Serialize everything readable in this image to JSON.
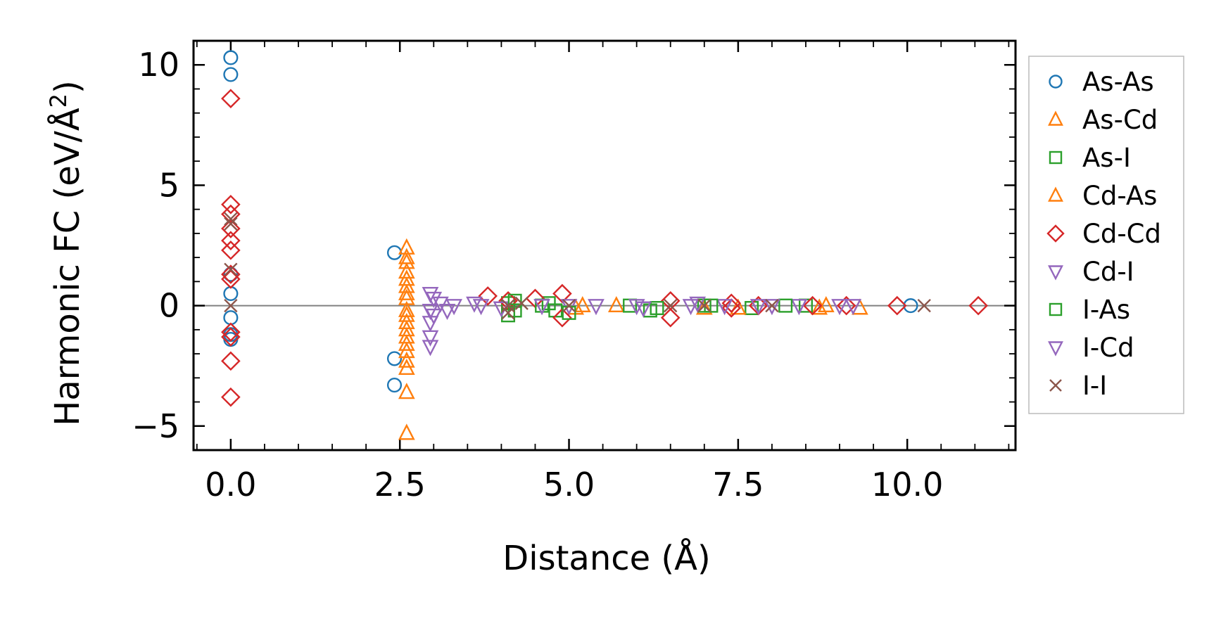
{
  "chart_data": {
    "type": "scatter",
    "xlabel": "Distance (Å)",
    "ylabel_main": "Harmonic FC (eV/Å",
    "ylabel_sup": "2",
    "ylabel_end": ")",
    "xlim": [
      -0.55,
      11.6
    ],
    "ylim": [
      -6.0,
      11.0
    ],
    "xticks": [
      0.0,
      2.5,
      5.0,
      7.5,
      10.0
    ],
    "xtick_labels": [
      "0.0",
      "2.5",
      "5.0",
      "7.5",
      "10.0"
    ],
    "yticks": [
      -5,
      0,
      5,
      10
    ],
    "ytick_labels": [
      "−5",
      "0",
      "5",
      "10"
    ],
    "reference_line": 0,
    "legend_position": "right, outside plot",
    "series": [
      {
        "name": "As-As",
        "marker": "circle",
        "color": "#1f77b4",
        "points": [
          [
            0,
            10.3
          ],
          [
            0,
            9.6
          ],
          [
            0,
            1.3
          ],
          [
            0,
            0.5
          ],
          [
            0,
            -0.5
          ],
          [
            0,
            -1.2
          ],
          [
            0,
            -1.4
          ],
          [
            2.42,
            2.2
          ],
          [
            2.42,
            -2.2
          ],
          [
            2.42,
            -3.3
          ],
          [
            10.05,
            0.0
          ]
        ]
      },
      {
        "name": "As-Cd",
        "marker": "triangle-up",
        "color": "#ff7f0e",
        "points": [
          [
            2.6,
            2.4
          ],
          [
            2.6,
            1.8
          ],
          [
            2.6,
            1.4
          ],
          [
            2.6,
            0.8
          ],
          [
            2.6,
            0.3
          ],
          [
            2.6,
            -0.4
          ],
          [
            2.6,
            -1.0
          ],
          [
            2.6,
            -1.6
          ],
          [
            2.6,
            -2.3
          ],
          [
            2.6,
            -3.6
          ],
          [
            2.6,
            -5.3
          ],
          [
            5.1,
            -0.1
          ],
          [
            5.7,
            0.0
          ],
          [
            7.0,
            -0.1
          ],
          [
            8.7,
            -0.1
          ],
          [
            9.3,
            -0.1
          ]
        ]
      },
      {
        "name": "As-I",
        "marker": "square",
        "color": "#2ca02c",
        "points": [
          [
            4.1,
            0.1
          ],
          [
            4.1,
            -0.4
          ],
          [
            4.7,
            0.1
          ],
          [
            4.8,
            -0.2
          ],
          [
            5.9,
            0.0
          ],
          [
            6.2,
            -0.2
          ],
          [
            7.0,
            0.0
          ],
          [
            7.7,
            -0.1
          ],
          [
            8.5,
            0.0
          ]
        ]
      },
      {
        "name": "Cd-As",
        "marker": "triangle-up",
        "color": "#ff7f0e",
        "points": [
          [
            2.6,
            2.0
          ],
          [
            2.6,
            1.1
          ],
          [
            2.6,
            0.5
          ],
          [
            2.6,
            -0.2
          ],
          [
            2.6,
            -0.7
          ],
          [
            2.6,
            -1.3
          ],
          [
            2.6,
            -1.9
          ],
          [
            2.6,
            -2.6
          ],
          [
            5.2,
            0.0
          ],
          [
            7.5,
            -0.1
          ],
          [
            8.8,
            0.0
          ]
        ]
      },
      {
        "name": "Cd-Cd",
        "marker": "diamond",
        "color": "#d62728",
        "points": [
          [
            0,
            8.6
          ],
          [
            0,
            4.2
          ],
          [
            0,
            3.8
          ],
          [
            0,
            3.2
          ],
          [
            0,
            2.7
          ],
          [
            0,
            2.3
          ],
          [
            0,
            1.3
          ],
          [
            0,
            1.1
          ],
          [
            0,
            -1.1
          ],
          [
            0,
            -1.3
          ],
          [
            0,
            -2.3
          ],
          [
            0,
            -3.8
          ],
          [
            3.8,
            0.4
          ],
          [
            4.1,
            0.2
          ],
          [
            4.5,
            0.3
          ],
          [
            4.9,
            0.5
          ],
          [
            4.9,
            -0.5
          ],
          [
            6.5,
            0.2
          ],
          [
            6.5,
            -0.5
          ],
          [
            7.4,
            0.1
          ],
          [
            7.4,
            -0.1
          ],
          [
            7.8,
            0.0
          ],
          [
            8.6,
            0.0
          ],
          [
            9.1,
            0.0
          ],
          [
            9.85,
            0.0
          ],
          [
            11.05,
            0.0
          ]
        ]
      },
      {
        "name": "Cd-I",
        "marker": "triangle-down",
        "color": "#9467bd",
        "points": [
          [
            2.95,
            0.5
          ],
          [
            2.95,
            -0.2
          ],
          [
            2.95,
            -0.7
          ],
          [
            2.95,
            -1.3
          ],
          [
            2.95,
            -1.7
          ],
          [
            3.1,
            0.1
          ],
          [
            3.3,
            0.0
          ],
          [
            3.6,
            0.1
          ],
          [
            4.0,
            -0.1
          ],
          [
            5.0,
            0.0
          ],
          [
            5.4,
            0.0
          ],
          [
            6.0,
            0.0
          ],
          [
            6.9,
            0.1
          ],
          [
            7.3,
            0.0
          ],
          [
            7.8,
            0.0
          ],
          [
            8.4,
            0.0
          ],
          [
            9.2,
            0.0
          ]
        ]
      },
      {
        "name": "I-As",
        "marker": "square",
        "color": "#2ca02c",
        "points": [
          [
            4.2,
            0.2
          ],
          [
            4.2,
            -0.2
          ],
          [
            4.6,
            0.0
          ],
          [
            5.0,
            -0.3
          ],
          [
            6.3,
            -0.1
          ],
          [
            7.1,
            0.0
          ],
          [
            8.2,
            0.0
          ]
        ]
      },
      {
        "name": "I-Cd",
        "marker": "triangle-down",
        "color": "#9467bd",
        "points": [
          [
            3.0,
            0.3
          ],
          [
            3.0,
            -0.4
          ],
          [
            3.2,
            -0.2
          ],
          [
            3.7,
            0.0
          ],
          [
            4.6,
            0.0
          ],
          [
            6.1,
            -0.1
          ],
          [
            6.8,
            0.0
          ],
          [
            8.0,
            0.0
          ],
          [
            9.0,
            0.0
          ]
        ]
      },
      {
        "name": "I-I",
        "marker": "x",
        "color": "#8c564b",
        "points": [
          [
            0,
            3.6
          ],
          [
            0,
            3.4
          ],
          [
            0,
            1.5
          ],
          [
            0,
            0.0
          ],
          [
            4.1,
            0.0
          ],
          [
            4.1,
            -0.3
          ],
          [
            4.3,
            0.1
          ],
          [
            5.0,
            0.0
          ],
          [
            6.5,
            0.0
          ],
          [
            7.0,
            0.0
          ],
          [
            8.0,
            0.0
          ],
          [
            10.25,
            0.0
          ]
        ]
      }
    ]
  }
}
